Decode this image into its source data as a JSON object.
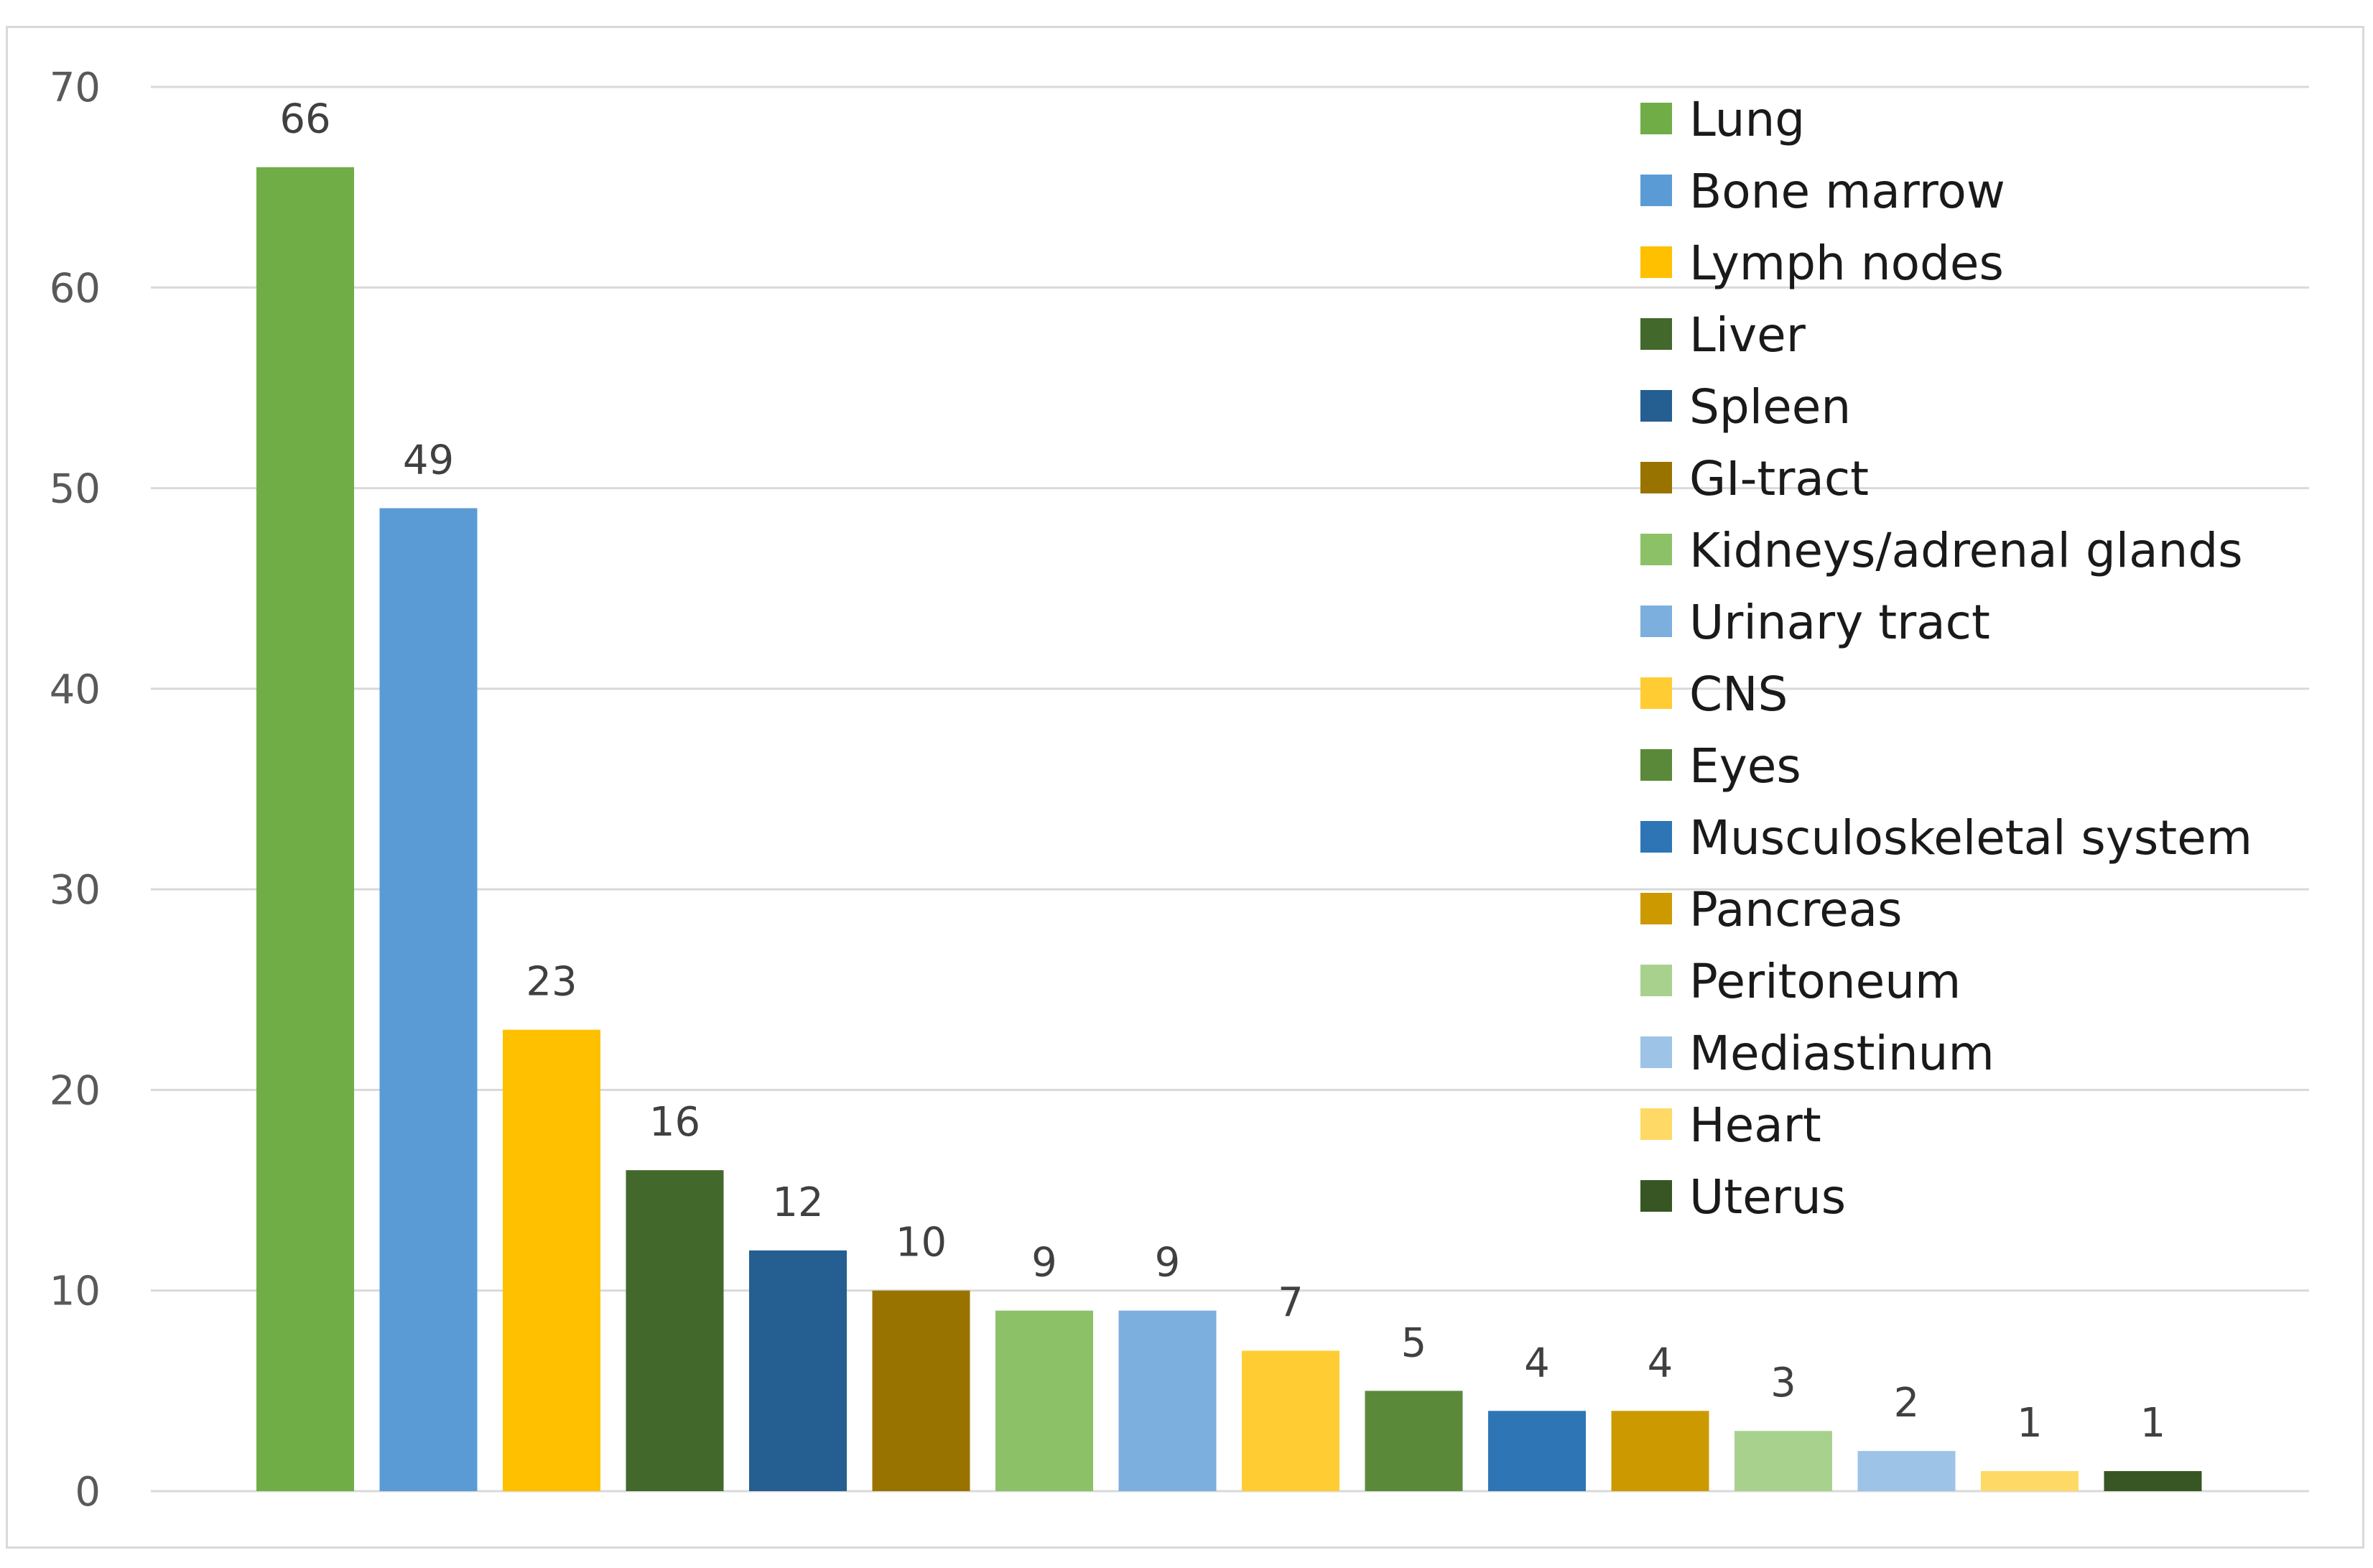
{
  "chart_data": {
    "type": "bar",
    "title": "",
    "xlabel": "",
    "ylabel": "",
    "ylim": [
      0,
      70
    ],
    "yticks": [
      0,
      10,
      20,
      30,
      40,
      50,
      60,
      70
    ],
    "grid": true,
    "legend_position": "top-right",
    "categories": [
      "Lung",
      "Bone marrow",
      "Lymph nodes",
      "Liver",
      "Spleen",
      "GI-tract",
      "Kidneys/adrenal glands",
      "Urinary tract",
      "CNS",
      "Eyes",
      "Musculoskeletal system",
      "Pancreas",
      "Peritoneum",
      "Mediastinum",
      "Heart",
      "Uterus"
    ],
    "values": [
      66,
      49,
      23,
      16,
      12,
      10,
      9,
      9,
      7,
      5,
      4,
      4,
      3,
      2,
      1,
      1
    ],
    "colors": [
      "#70ad47",
      "#5b9bd5",
      "#ffc000",
      "#43682b",
      "#255e91",
      "#997300",
      "#8cc168",
      "#7cafdd",
      "#ffcd33",
      "#5a8a39",
      "#2e75b6",
      "#cc9a00",
      "#a9d18e",
      "#9dc3e6",
      "#ffd966",
      "#375623"
    ]
  }
}
